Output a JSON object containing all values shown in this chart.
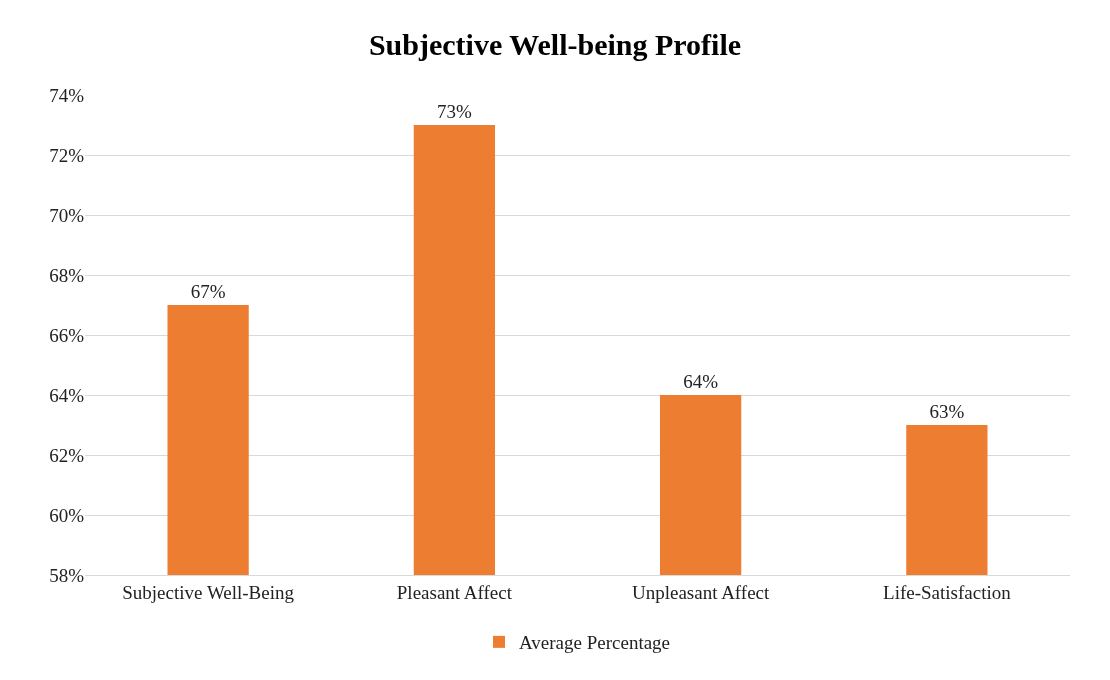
{
  "chart_data": {
    "type": "bar",
    "title": "Subjective Well-being Profile",
    "categories": [
      "Subjective Well-Being",
      "Pleasant Affect",
      "Unpleasant Affect",
      "Life-Satisfaction"
    ],
    "series": [
      {
        "name": "Average Percentage",
        "color": "#ed7d31",
        "values": [
          67,
          73,
          64,
          63
        ],
        "value_labels": [
          "67%",
          "73%",
          "64%",
          "63%"
        ]
      }
    ],
    "ylim": [
      58,
      74
    ],
    "yticks": [
      {
        "value": 58,
        "label": "58%"
      },
      {
        "value": 60,
        "label": "60%"
      },
      {
        "value": 62,
        "label": "62%"
      },
      {
        "value": 64,
        "label": "64%"
      },
      {
        "value": 66,
        "label": "66%"
      },
      {
        "value": 68,
        "label": "68%"
      },
      {
        "value": 70,
        "label": "70%"
      },
      {
        "value": 72,
        "label": "72%"
      },
      {
        "value": 74,
        "label": "74%"
      }
    ],
    "grid": "y",
    "legend": "bottom"
  }
}
